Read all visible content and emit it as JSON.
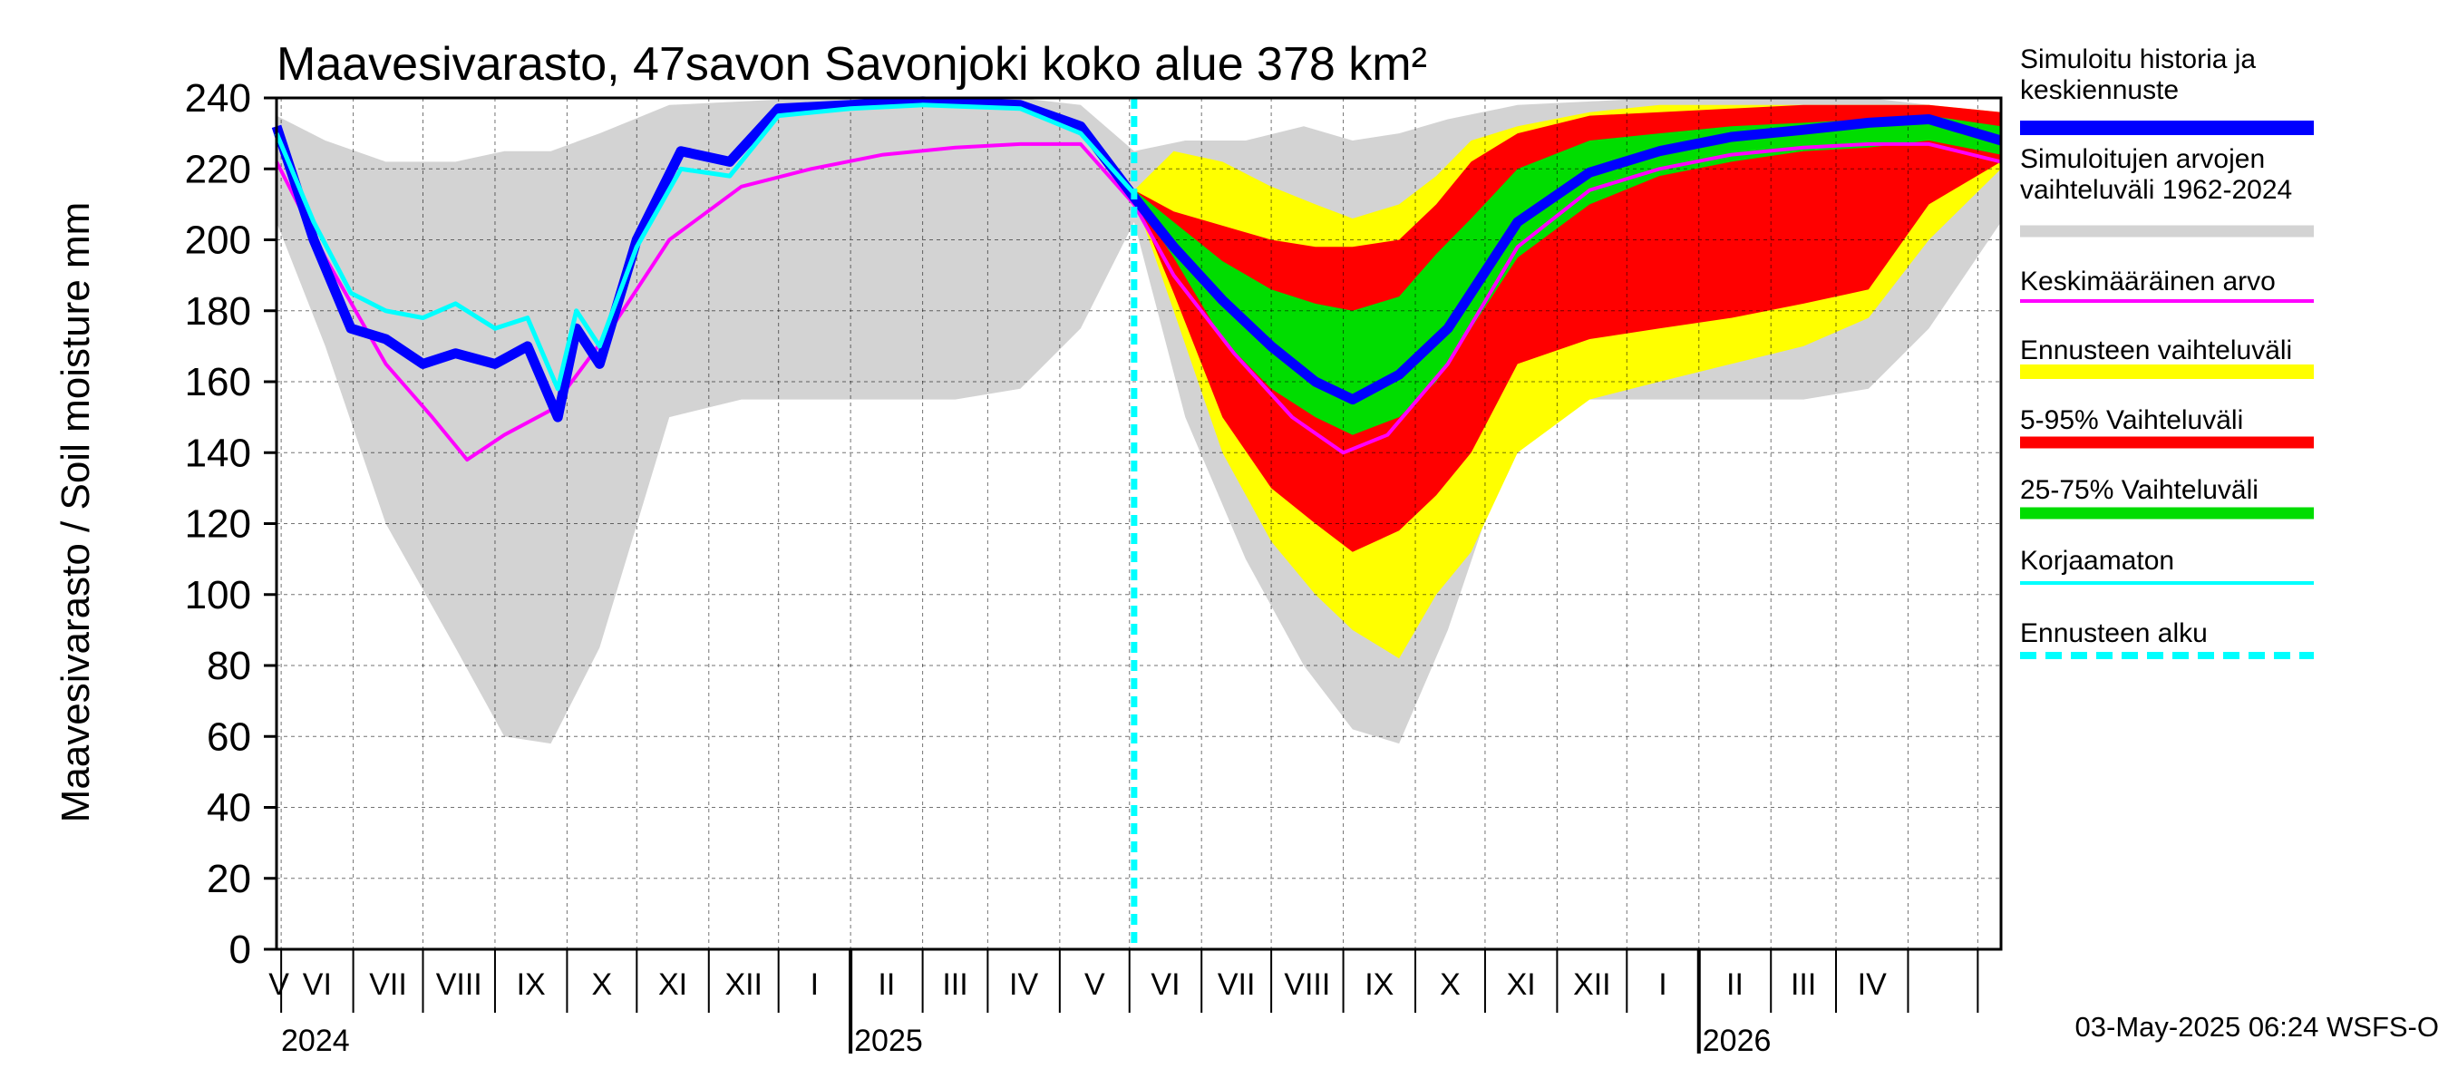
{
  "chart_data": {
    "type": "area",
    "title": "Maavesivarasto, 47savon Savonjoki koko alue 378 km²",
    "ylabel": "Maavesivarasto / Soil moisture   mm",
    "ylim": [
      0,
      240
    ],
    "yticks": [
      "0",
      "20",
      "40",
      "60",
      "80",
      "100",
      "120",
      "140",
      "160",
      "180",
      "200",
      "220",
      "240"
    ],
    "xlim": [
      "2024-04-29",
      "2026-05-11"
    ],
    "grid": true,
    "legend_placement": "right",
    "forecast_start": "2025-05-03",
    "months": [
      "V",
      "VI",
      "VII",
      "VIII",
      "IX",
      "X",
      "XI",
      "XII",
      "I",
      "II",
      "III",
      "IV",
      "V",
      "VI",
      "VII",
      "VIII",
      "IX",
      "X",
      "XI",
      "XII",
      "I",
      "II",
      "III",
      "IV"
    ],
    "years": [
      "2024",
      "2025",
      "2026"
    ],
    "timestamp": "03-May-2025 06:24 WSFS-O",
    "legend": [
      {
        "label": "Simuloitu historia ja keskiennuste",
        "color": "#0000ff"
      },
      {
        "label": "Simuloitujen arvojen vaihteluväli 1962-2024",
        "color": "#d3d3d3"
      },
      {
        "label": "Keskimääräinen arvo",
        "color": "#ff00ff"
      },
      {
        "label": "Ennusteen vaihteluväli",
        "color": "#ffff00"
      },
      {
        "label": "5-95% Vaihteluväli",
        "color": "#ff0000"
      },
      {
        "label": "25-75% Vaihteluväli",
        "color": "#00dd00"
      },
      {
        "label": "Korjaamaton",
        "color": "#00ffff"
      },
      {
        "label": "Ennusteen alku",
        "color": "#00ffff"
      }
    ],
    "series": [
      {
        "name": "Simuloitujen arvojen vaihteluväli 1962-2024",
        "type": "band",
        "x": [
          "2024-04-29",
          "2024-05-20",
          "2024-06-15",
          "2024-07-15",
          "2024-08-05",
          "2024-08-25",
          "2024-09-15",
          "2024-10-15",
          "2024-11-15",
          "2024-12-15",
          "2025-01-15",
          "2025-02-15",
          "2025-03-15",
          "2025-04-10",
          "2025-05-03",
          "2025-05-25",
          "2025-06-20",
          "2025-07-15",
          "2025-08-05",
          "2025-08-25",
          "2025-09-15",
          "2025-10-15",
          "2025-11-15",
          "2025-12-15",
          "2026-01-15",
          "2026-02-15",
          "2026-03-15",
          "2026-04-10",
          "2026-05-11"
        ],
        "low": [
          205,
          170,
          120,
          85,
          60,
          58,
          85,
          150,
          155,
          155,
          155,
          155,
          158,
          175,
          205,
          150,
          110,
          80,
          62,
          58,
          90,
          148,
          155,
          155,
          155,
          155,
          158,
          175,
          205
        ],
        "high": [
          235,
          228,
          222,
          222,
          225,
          225,
          230,
          238,
          239,
          240,
          240,
          240,
          240,
          238,
          225,
          228,
          228,
          232,
          228,
          230,
          234,
          238,
          239,
          240,
          240,
          240,
          240,
          238,
          235
        ]
      },
      {
        "name": "Ennusteen vaihteluväli",
        "type": "band",
        "x": [
          "2025-05-03",
          "2025-05-20",
          "2025-06-10",
          "2025-07-01",
          "2025-07-20",
          "2025-08-05",
          "2025-08-25",
          "2025-09-10",
          "2025-09-25",
          "2025-10-15",
          "2025-11-15",
          "2025-12-15",
          "2026-01-15",
          "2026-02-15",
          "2026-03-15",
          "2026-04-10",
          "2026-05-11"
        ],
        "low": [
          212,
          180,
          140,
          115,
          100,
          90,
          82,
          100,
          112,
          140,
          155,
          160,
          165,
          170,
          178,
          200,
          220
        ],
        "high": [
          214,
          225,
          222,
          215,
          210,
          206,
          210,
          218,
          228,
          232,
          236,
          238,
          238,
          238,
          238,
          238,
          236
        ]
      },
      {
        "name": "5-95% Vaihteluväli",
        "type": "band",
        "x": [
          "2025-05-03",
          "2025-05-20",
          "2025-06-10",
          "2025-07-01",
          "2025-07-20",
          "2025-08-05",
          "2025-08-25",
          "2025-09-10",
          "2025-09-25",
          "2025-10-15",
          "2025-11-15",
          "2025-12-15",
          "2026-01-15",
          "2026-02-15",
          "2026-03-15",
          "2026-04-10",
          "2026-05-11"
        ],
        "low": [
          212,
          185,
          150,
          130,
          120,
          112,
          118,
          128,
          140,
          165,
          172,
          175,
          178,
          182,
          186,
          210,
          222
        ],
        "high": [
          214,
          208,
          204,
          200,
          198,
          198,
          200,
          210,
          222,
          230,
          235,
          236,
          237,
          238,
          238,
          238,
          236
        ]
      },
      {
        "name": "25-75% Vaihteluväli",
        "type": "band",
        "x": [
          "2025-05-03",
          "2025-05-20",
          "2025-06-10",
          "2025-07-01",
          "2025-07-20",
          "2025-08-05",
          "2025-08-25",
          "2025-09-10",
          "2025-09-25",
          "2025-10-15",
          "2025-11-15",
          "2025-12-15",
          "2026-01-15",
          "2026-02-15",
          "2026-03-15",
          "2026-04-10",
          "2026-05-11"
        ],
        "low": [
          212,
          195,
          172,
          158,
          150,
          145,
          150,
          160,
          175,
          195,
          210,
          218,
          222,
          225,
          226,
          228,
          224
        ],
        "high": [
          214,
          205,
          194,
          186,
          182,
          180,
          184,
          196,
          206,
          220,
          228,
          230,
          232,
          233,
          234,
          235,
          232
        ]
      },
      {
        "name": "Simuloitu historia ja keskiennuste",
        "type": "line",
        "x": [
          "2024-04-29",
          "2024-05-15",
          "2024-05-31",
          "2024-06-15",
          "2024-07-01",
          "2024-07-15",
          "2024-08-01",
          "2024-08-15",
          "2024-08-28",
          "2024-09-05",
          "2024-09-15",
          "2024-10-01",
          "2024-10-20",
          "2024-11-10",
          "2024-12-01",
          "2025-01-01",
          "2025-02-01",
          "2025-03-15",
          "2025-04-10",
          "2025-05-03",
          "2025-05-20",
          "2025-06-10",
          "2025-07-01",
          "2025-07-20",
          "2025-08-05",
          "2025-08-25",
          "2025-09-15",
          "2025-10-15",
          "2025-11-15",
          "2025-12-15",
          "2026-01-15",
          "2026-02-15",
          "2026-03-15",
          "2026-04-10",
          "2026-05-11"
        ],
        "y": [
          232,
          200,
          175,
          172,
          165,
          168,
          165,
          170,
          150,
          175,
          165,
          200,
          225,
          222,
          237,
          238,
          239,
          238,
          232,
          212,
          198,
          183,
          170,
          160,
          155,
          162,
          175,
          205,
          219,
          225,
          229,
          231,
          233,
          234,
          228
        ]
      },
      {
        "name": "Keskimääräinen arvo",
        "type": "line",
        "x": [
          "2024-04-29",
          "2024-05-20",
          "2024-06-15",
          "2024-07-05",
          "2024-07-20",
          "2024-08-05",
          "2024-08-25",
          "2024-09-20",
          "2024-10-15",
          "2024-11-15",
          "2024-12-15",
          "2025-01-15",
          "2025-02-15",
          "2025-03-15",
          "2025-04-10",
          "2025-05-03",
          "2025-05-20",
          "2025-06-15",
          "2025-07-10",
          "2025-08-01",
          "2025-08-20",
          "2025-09-15",
          "2025-10-15",
          "2025-11-15",
          "2025-12-15",
          "2026-01-15",
          "2026-02-15",
          "2026-03-15",
          "2026-04-10",
          "2026-05-11"
        ],
        "y": [
          222,
          195,
          165,
          150,
          138,
          145,
          152,
          175,
          200,
          215,
          220,
          224,
          226,
          227,
          227,
          210,
          190,
          168,
          150,
          140,
          145,
          165,
          198,
          214,
          220,
          224,
          226,
          227,
          227,
          222
        ]
      },
      {
        "name": "Korjaamaton",
        "type": "line",
        "x": [
          "2024-04-29",
          "2024-05-15",
          "2024-05-31",
          "2024-06-15",
          "2024-07-01",
          "2024-07-15",
          "2024-08-01",
          "2024-08-15",
          "2024-08-28",
          "2024-09-05",
          "2024-09-15",
          "2024-10-01",
          "2024-10-20",
          "2024-11-10",
          "2024-12-01",
          "2025-01-01",
          "2025-02-01",
          "2025-03-15",
          "2025-04-10",
          "2025-05-03"
        ],
        "y": [
          230,
          205,
          185,
          180,
          178,
          182,
          175,
          178,
          158,
          180,
          170,
          198,
          220,
          218,
          235,
          237,
          238,
          237,
          230,
          213
        ]
      }
    ]
  }
}
